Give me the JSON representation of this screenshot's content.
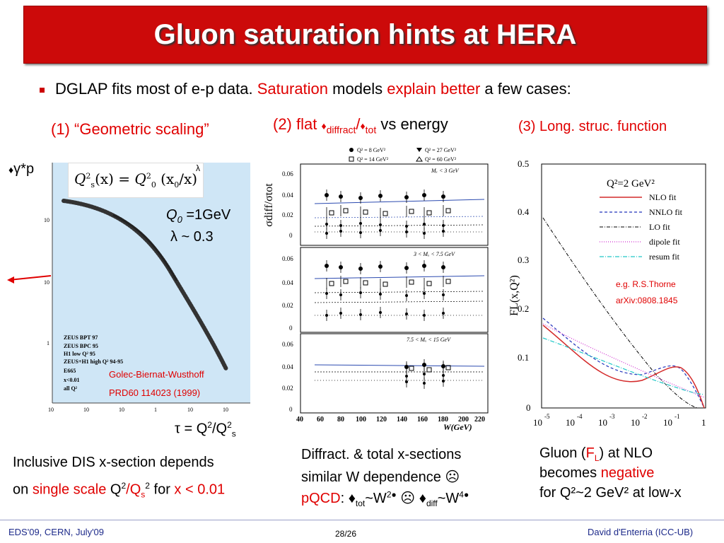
{
  "slide": {
    "title": "Gluon saturation hints at HERA",
    "bullet": {
      "part1": "DGLAP fits most of e-p data.",
      "part2": "Saturation",
      "part3": "models",
      "part4": "explain better",
      "part5": "a few cases:"
    },
    "section1": {
      "heading": "(1) “Geometric scaling”",
      "y_symbol": "♦",
      "y_label": "γ*p",
      "formula_lhs": "Q",
      "formula_exp": "λ",
      "q0": "Q",
      "q0_sub": "0",
      "q0_val": "=1GeV",
      "lambda": "λ ~ 0.3",
      "legend": [
        "ZEUS BPT 97",
        "ZEUS BPC 95",
        "H1 low Q² 95",
        "ZEUS+H1 high Q² 94-95",
        "E665",
        "x<0.01",
        "all Q²"
      ],
      "ref1": "Golec-Biernat-Wusthoff",
      "ref2": "PRD60 114023 (1999)",
      "yticks": [
        "10",
        "1",
        "10"
      ],
      "xticks": [
        "10",
        "10",
        "10",
        "1",
        "10",
        "10"
      ],
      "tau": "τ = Q",
      "tau_sup": "2",
      "tau_mid": "/Q",
      "tau_sup2": "2",
      "tau_sub": "s",
      "desc1": "Inclusive DIS x-section depends",
      "desc2_a": "on",
      "desc2_b": "single scale",
      "desc2_c": "Q",
      "desc2_d": "2",
      "desc2_e": "/Q",
      "desc2_f": "s",
      "desc2_g": "2",
      "desc2_h": "for",
      "desc2_i": "x < 0.01"
    },
    "section2": {
      "heading_a": "(2) flat ",
      "heading_sym1": "♦",
      "heading_sub1": "diffract",
      "heading_slash": "/",
      "heading_sym2": "♦",
      "heading_sub2": "tot",
      "heading_b": " vs energy",
      "legend": [
        "Q² = 8 GeV²",
        "Q² = 14 GeV²",
        "Q² = 27 GeV²",
        "Q² = 60 GeV²"
      ],
      "panels": [
        "Mₓ < 3 GeV",
        "3 < Mₓ < 7.5 GeV",
        "7.5 < Mₓ < 15 GeV"
      ],
      "ylabel": "σdiff/σtot",
      "yticks": [
        "0.06",
        "0.04",
        "0.02",
        "0"
      ],
      "xticks": [
        "40",
        "60",
        "80",
        "100",
        "120",
        "140",
        "160",
        "180",
        "200",
        "220"
      ],
      "xlabel": "W(GeV)",
      "desc1": "Diffract. & total x-sections",
      "desc2": "similar W dependence ☹",
      "desc3_a": "pQCD",
      "desc3_b": ": ♦",
      "desc3_c": "tot",
      "desc3_d": "~W",
      "desc3_e": "2●",
      "desc3_f": "☹",
      "desc3_g": "♦",
      "desc3_h": "diff",
      "desc3_i": "~W",
      "desc3_j": "4●"
    },
    "section3": {
      "heading": "(3) Long. struc. function",
      "plot_title": "Q²=2 GeV²",
      "legend": [
        "NLO fit",
        "NNLO fit",
        "LO fit",
        "dipole fit",
        "resum fit"
      ],
      "ref1": "e.g. R.S.Thorne",
      "ref2": "arXiv:0808.1845",
      "ylabel": "FL(x,Q²)",
      "yticks": [
        "0.5",
        "0.4",
        "0.3",
        "0.2",
        "0.1",
        "0"
      ],
      "xticks": [
        "10",
        "10",
        "10",
        "10",
        "10",
        "1"
      ],
      "xexps": [
        "-5",
        "-4",
        "-3",
        "-2",
        "-1"
      ],
      "desc1_a": "Gluon (",
      "desc1_b": "F",
      "desc1_c": "L",
      "desc1_d": ") at NLO",
      "desc2_a": "becomes",
      "desc2_b": "negative",
      "desc3": "for Q²~2 GeV² at low-x"
    },
    "footer": {
      "left": "EDS'09, CERN, July'09",
      "center": "28/26",
      "right": "David d'Enterria (ICC-UB)"
    },
    "colors": {
      "title_bg": "#cc0a0a",
      "accent": "#e00000",
      "footer": "#1d2a8a"
    }
  }
}
